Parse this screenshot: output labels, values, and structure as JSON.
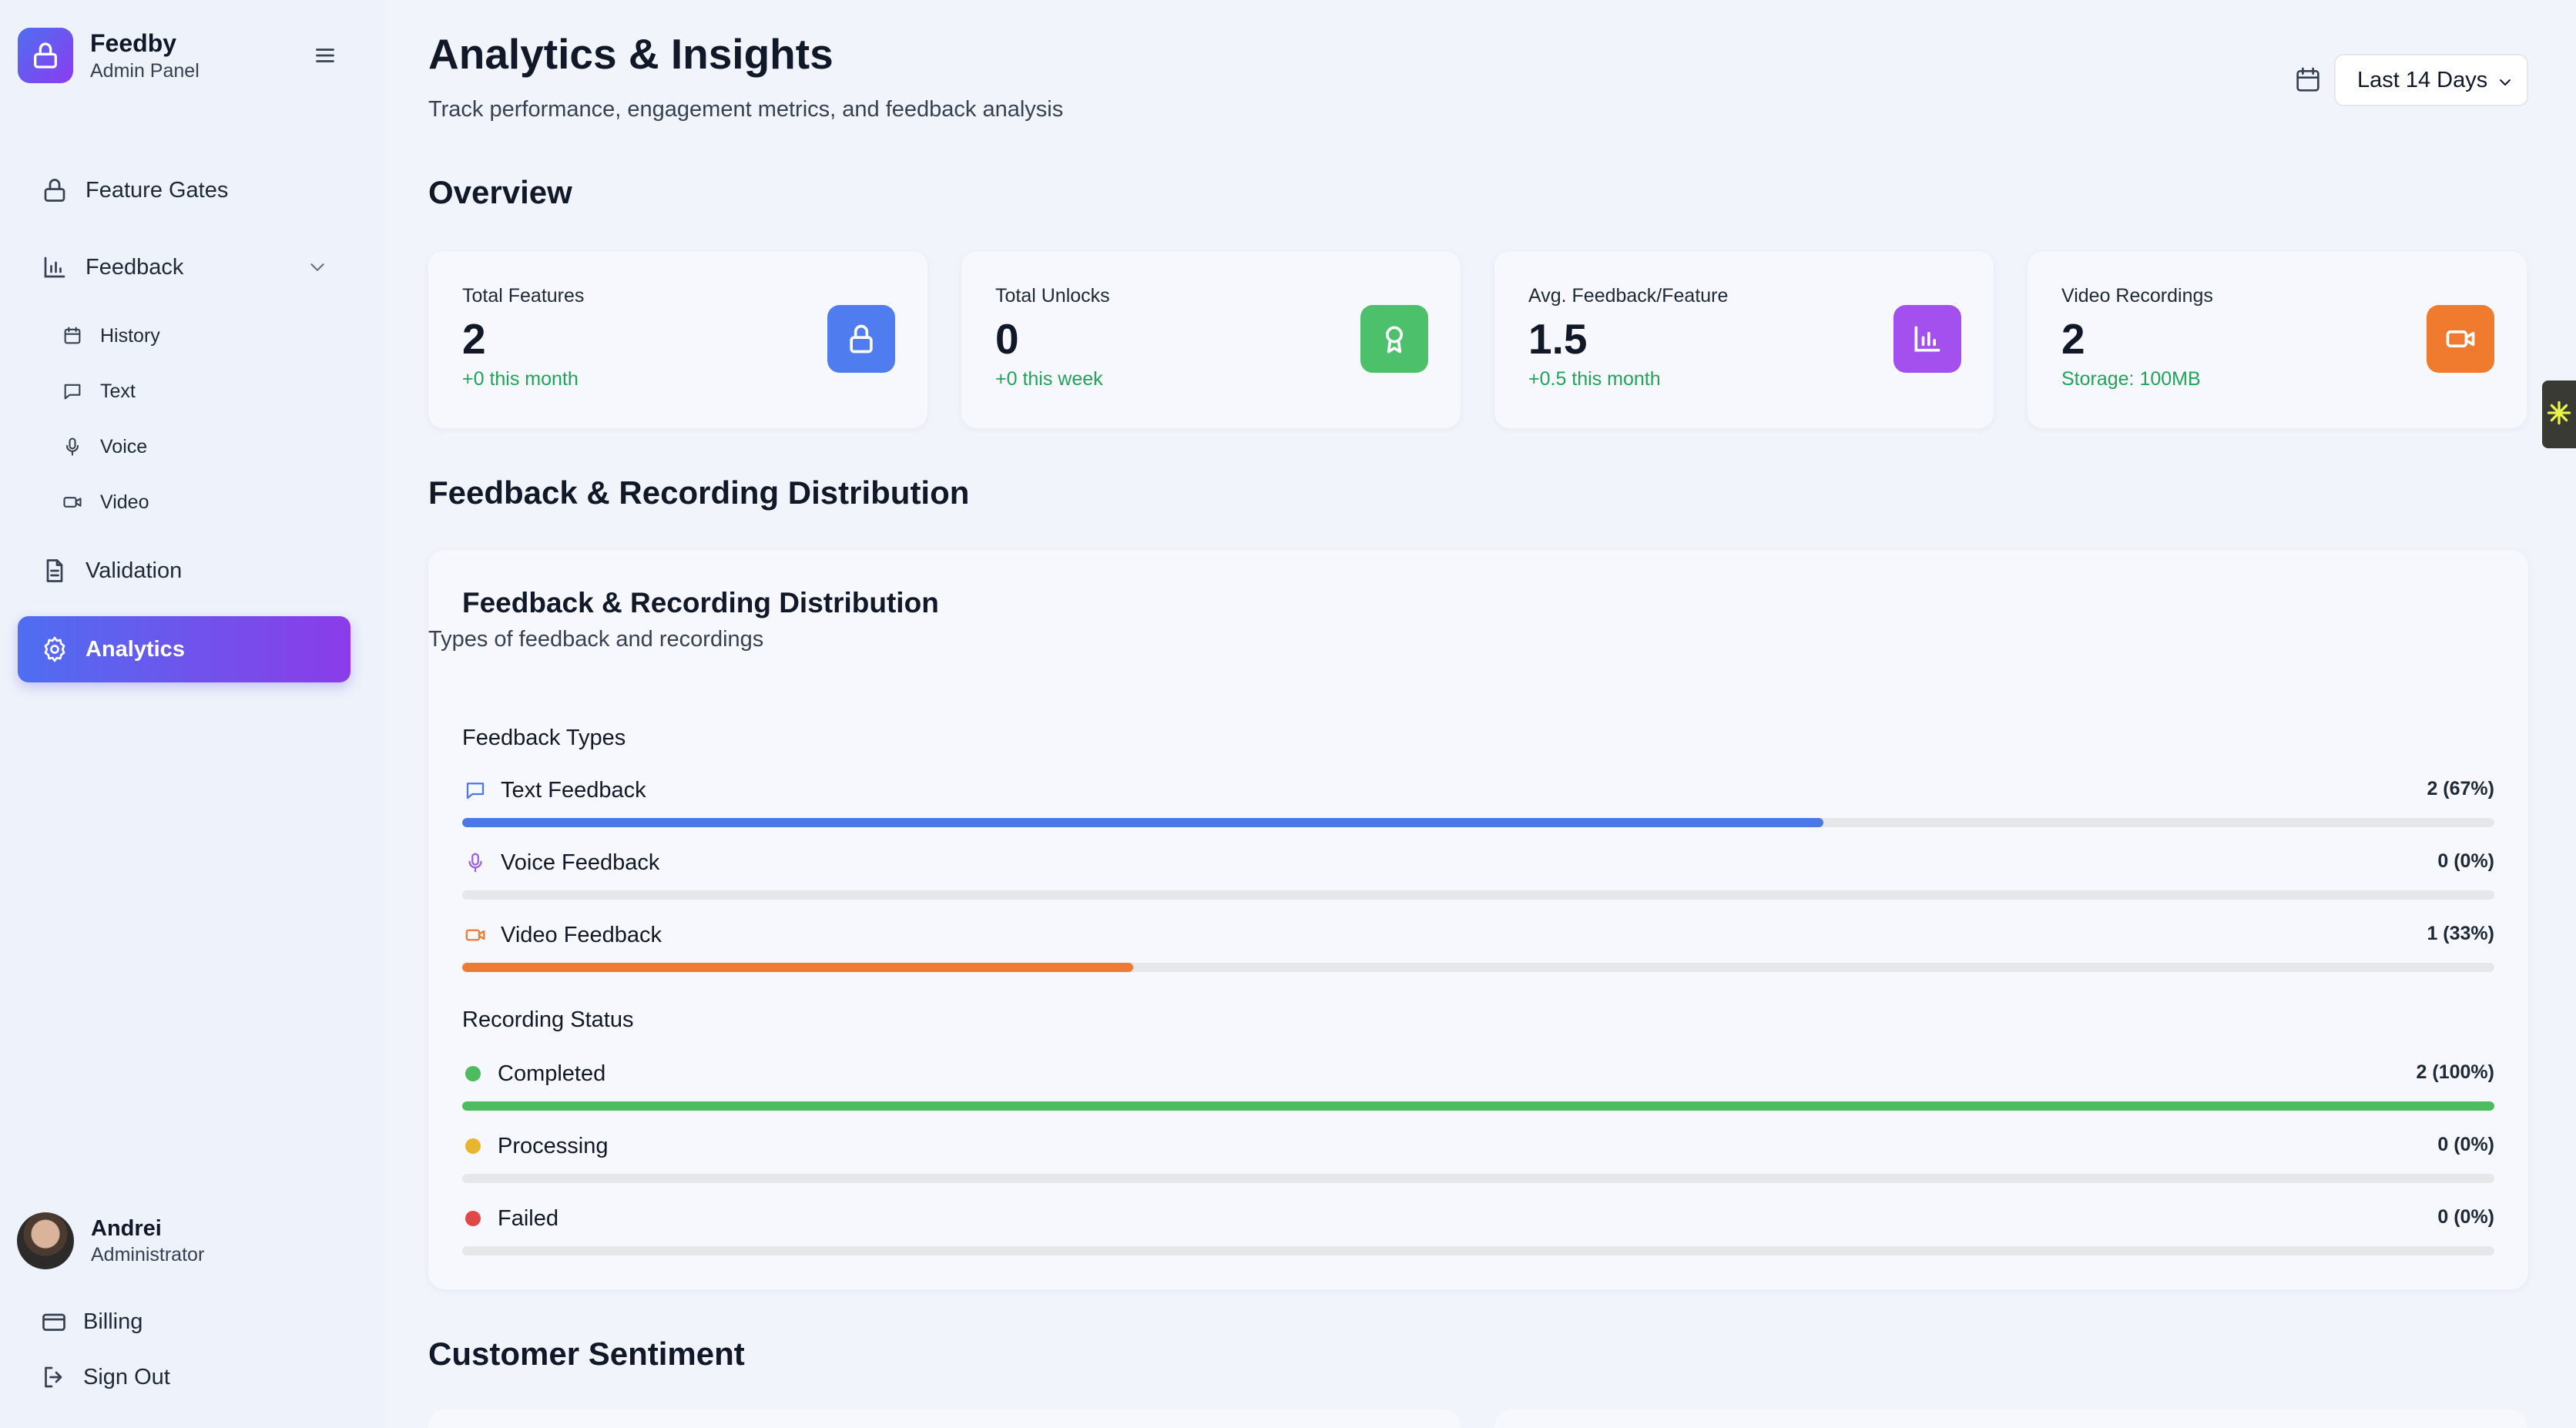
{
  "brand": {
    "name": "Feedby",
    "subtitle": "Admin Panel"
  },
  "nav": {
    "feature_gates": "Feature Gates",
    "feedback": "Feedback",
    "feedback_sub": [
      "History",
      "Text",
      "Voice",
      "Video"
    ],
    "validation": "Validation",
    "analytics": "Analytics"
  },
  "user": {
    "name": "Andrei",
    "role": "Administrator"
  },
  "bottom": {
    "billing": "Billing",
    "sign_out": "Sign Out"
  },
  "header": {
    "title": "Analytics & Insights",
    "subtitle": "Track performance, engagement metrics, and feedback analysis",
    "range": "Last 14 Days"
  },
  "overview": {
    "title": "Overview",
    "cards": [
      {
        "label": "Total Features",
        "value": "2",
        "delta": "+0 this month",
        "icon": "lock-icon",
        "color": "#4f7df0"
      },
      {
        "label": "Total Unlocks",
        "value": "0",
        "delta": "+0 this week",
        "icon": "award-icon",
        "color": "#4cc06a"
      },
      {
        "label": "Avg. Feedback/Feature",
        "value": "1.5",
        "delta": "+0.5 this month",
        "icon": "bar-chart-icon",
        "color": "#a350ef"
      },
      {
        "label": "Video Recordings",
        "value": "2",
        "delta": "Storage: 100MB",
        "icon": "video-icon",
        "color": "#f07a2e"
      }
    ]
  },
  "distribution": {
    "section_title": "Feedback & Recording Distribution",
    "card_title": "Feedback & Recording Distribution",
    "card_subtitle": "Types of feedback and recordings",
    "feedback_types_label": "Feedback Types",
    "feedback_types": [
      {
        "name": "Text Feedback",
        "value": "2 (67%)",
        "pct": 67,
        "color": "#4b78e6",
        "icon": "message-icon"
      },
      {
        "name": "Voice Feedback",
        "value": "0 (0%)",
        "pct": 0,
        "color": "#9b5de5",
        "icon": "mic-icon"
      },
      {
        "name": "Video Feedback",
        "value": "1 (33%)",
        "pct": 33,
        "color": "#ee7a36",
        "icon": "video-icon"
      }
    ],
    "recording_status_label": "Recording Status",
    "recording_status": [
      {
        "name": "Completed",
        "value": "2 (100%)",
        "pct": 100,
        "color": "#4dbb5f"
      },
      {
        "name": "Processing",
        "value": "0 (0%)",
        "pct": 0,
        "color": "#e9b530"
      },
      {
        "name": "Failed",
        "value": "0 (0%)",
        "pct": 0,
        "color": "#e04848"
      }
    ]
  },
  "sentiment": {
    "title": "Customer Sentiment"
  }
}
